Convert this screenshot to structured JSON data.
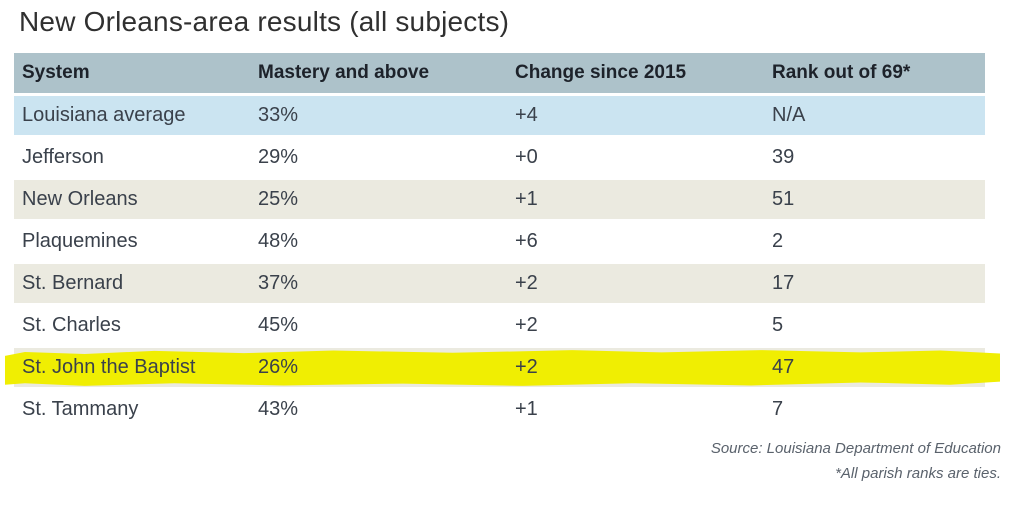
{
  "title": "New Orleans-area results (all subjects)",
  "table": {
    "columns": [
      {
        "label": "System"
      },
      {
        "label": "Mastery and above"
      },
      {
        "label": "Change since 2015"
      },
      {
        "label": "Rank out of 69*"
      }
    ],
    "rows": [
      {
        "system": "Louisiana average",
        "mastery": "33%",
        "change": "+4",
        "rank": "N/A",
        "highlighted": false
      },
      {
        "system": "Jefferson",
        "mastery": "29%",
        "change": "+0",
        "rank": "39",
        "highlighted": false
      },
      {
        "system": "New Orleans",
        "mastery": "25%",
        "change": "+1",
        "rank": "51",
        "highlighted": false
      },
      {
        "system": "Plaquemines",
        "mastery": "48%",
        "change": "+6",
        "rank": "2",
        "highlighted": false
      },
      {
        "system": "St. Bernard",
        "mastery": "37%",
        "change": "+2",
        "rank": "17",
        "highlighted": false
      },
      {
        "system": "St. Charles",
        "mastery": "45%",
        "change": "+2",
        "rank": "5",
        "highlighted": false
      },
      {
        "system": "St. John the Baptist",
        "mastery": "26%",
        "change": "+2",
        "rank": "47",
        "highlighted": true
      },
      {
        "system": "St. Tammany",
        "mastery": "43%",
        "change": "+1",
        "rank": "7",
        "highlighted": false
      }
    ]
  },
  "footer": {
    "source": "Source: Louisiana Department of Education",
    "note": "*All parish ranks are ties."
  },
  "colors": {
    "header_bg": "#adc2ca",
    "blue_row_bg": "#cbe4f1",
    "beige_row_bg": "#ebeae0",
    "highlight_yellow": "#f0ee02",
    "header_text": "#1d222a",
    "row_text": "#3a414b",
    "footer_text": "#5a626c"
  },
  "chart_data": {
    "type": "table",
    "title": "New Orleans-area results (all subjects)",
    "columns": [
      "System",
      "Mastery and above",
      "Change since 2015",
      "Rank out of 69*"
    ],
    "rows": [
      [
        "Louisiana average",
        "33%",
        "+4",
        "N/A"
      ],
      [
        "Jefferson",
        "29%",
        "+0",
        "39"
      ],
      [
        "New Orleans",
        "25%",
        "+1",
        "51"
      ],
      [
        "Plaquemines",
        "48%",
        "+6",
        "2"
      ],
      [
        "St. Bernard",
        "37%",
        "+2",
        "17"
      ],
      [
        "St. Charles",
        "45%",
        "+2",
        "5"
      ],
      [
        "St. John the Baptist",
        "26%",
        "+2",
        "47"
      ],
      [
        "St. Tammany",
        "43%",
        "+1",
        "7"
      ]
    ],
    "highlighted_row": "St. John the Baptist",
    "source": "Source: Louisiana Department of Education",
    "footnote": "*All parish ranks are ties.",
    "layout": "alternating row shading: light blue (state average), white, beige; highlighted row marked with yellow highlighter stroke"
  }
}
